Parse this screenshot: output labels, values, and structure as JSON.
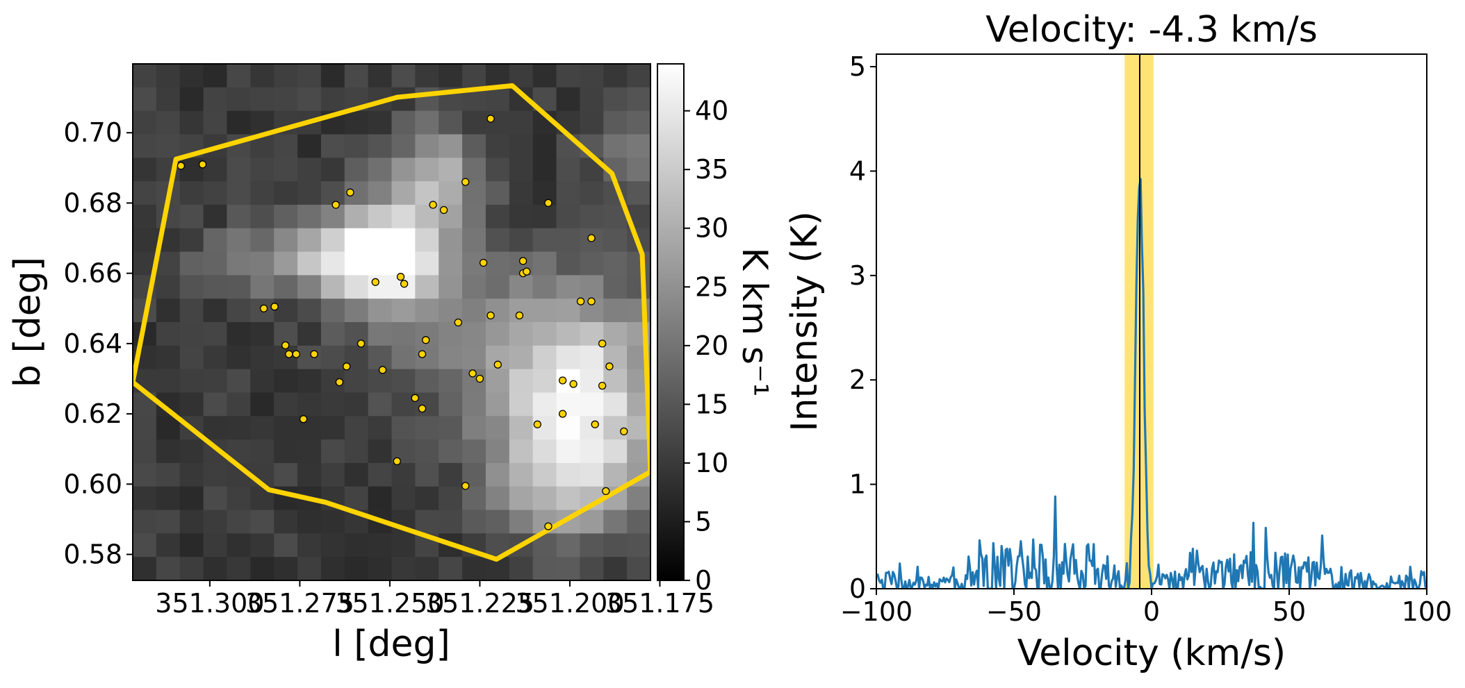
{
  "chart_data": [
    {
      "type": "heatmap",
      "xlabel": "l [deg]",
      "ylabel": "b [deg]",
      "xlim": [
        351.3214,
        351.1776
      ],
      "ylim": [
        0.5726,
        0.7196
      ],
      "xticks": [
        351.3,
        351.275,
        351.25,
        351.225,
        351.2,
        351.175
      ],
      "xtick_labels": [
        "351.300",
        "351.275",
        "351.250",
        "351.225",
        "351.200",
        "351.175"
      ],
      "yticks": [
        0.58,
        0.6,
        0.62,
        0.64,
        0.66,
        0.68,
        0.7
      ],
      "ytick_labels": [
        "0.58",
        "0.60",
        "0.62",
        "0.64",
        "0.66",
        "0.68",
        "0.70"
      ],
      "colormap": "gray",
      "colorbar": {
        "label": "K km s⁻¹",
        "range": [
          0,
          44
        ],
        "ticks": [
          0,
          5,
          10,
          15,
          20,
          25,
          30,
          35,
          40
        ],
        "tick_labels": [
          "0",
          "5",
          "10",
          "15",
          "20",
          "25",
          "30",
          "35",
          "40"
        ]
      },
      "grid_rows": 22,
      "grid_cols": 22,
      "blobs": [
        {
          "l": 351.251,
          "b": 0.666,
          "peak": 32,
          "sigma_l": 0.011,
          "sigma_b": 0.011
        },
        {
          "l": 351.27,
          "b": 0.664,
          "peak": 18,
          "sigma_l": 0.02,
          "sigma_b": 0.007
        },
        {
          "l": 351.238,
          "b": 0.688,
          "peak": 20,
          "sigma_l": 0.009,
          "sigma_b": 0.01
        },
        {
          "l": 351.198,
          "b": 0.627,
          "peak": 30,
          "sigma_l": 0.018,
          "sigma_b": 0.02
        },
        {
          "l": 351.2,
          "b": 0.6,
          "peak": 16,
          "sigma_l": 0.014,
          "sigma_b": 0.012
        },
        {
          "l": 351.235,
          "b": 0.645,
          "peak": 8,
          "sigma_l": 0.02,
          "sigma_b": 0.015
        },
        {
          "l": 351.183,
          "b": 0.695,
          "peak": 10,
          "sigma_l": 0.008,
          "sigma_b": 0.012
        }
      ],
      "base_level": 10,
      "polygon_l": [
        351.3214,
        351.3094,
        351.248,
        351.216,
        351.1883,
        351.1799,
        351.1776,
        351.2204,
        351.2678,
        351.2836,
        351.3214
      ],
      "polygon_b": [
        0.629,
        0.6925,
        0.7101,
        0.7134,
        0.6884,
        0.6654,
        0.6035,
        0.5786,
        0.5948,
        0.5984,
        0.629
      ],
      "polygon_color": "#ffd400",
      "points_l": [
        351.308,
        351.302,
        351.282,
        351.279,
        351.285,
        351.276,
        351.274,
        351.271,
        351.278,
        351.264,
        351.265,
        351.261,
        351.262,
        351.258,
        351.254,
        351.252,
        351.248,
        351.246,
        351.247,
        351.243,
        351.241,
        351.24,
        351.241,
        351.238,
        351.235,
        351.229,
        351.231,
        351.227,
        351.225,
        351.22,
        351.222,
        351.213,
        351.213,
        351.222,
        351.206,
        351.197,
        351.194,
        351.194,
        351.191,
        351.199,
        351.202,
        351.189,
        351.191,
        351.185,
        351.193,
        351.19,
        351.206,
        351.202,
        351.209,
        351.229,
        351.224,
        351.212,
        351.214
      ],
      "points_b": [
        0.6906,
        0.691,
        0.6505,
        0.6395,
        0.65,
        0.637,
        0.6185,
        0.637,
        0.637,
        0.629,
        0.6795,
        0.683,
        0.6335,
        0.64,
        0.6575,
        0.6325,
        0.6065,
        0.657,
        0.659,
        0.6245,
        0.637,
        0.641,
        0.6215,
        0.6795,
        0.678,
        0.686,
        0.646,
        0.6315,
        0.63,
        0.634,
        0.704,
        0.6635,
        0.66,
        0.648,
        0.68,
        0.652,
        0.652,
        0.67,
        0.64,
        0.6285,
        0.62,
        0.6335,
        0.628,
        0.615,
        0.617,
        0.598,
        0.588,
        0.6295,
        0.617,
        0.5995,
        0.663,
        0.6605,
        0.648
      ],
      "point_color": "#ffd400"
    },
    {
      "type": "line",
      "title": "Velocity: -4.3 km/s",
      "xlabel": "Velocity (km/s)",
      "ylabel": "Intensity (K)",
      "xlim": [
        -100,
        100
      ],
      "ylim": [
        0,
        5.12
      ],
      "xticks": [
        -100,
        -50,
        0,
        50,
        100
      ],
      "xtick_labels": [
        "−100",
        "−50",
        "0",
        "50",
        "100"
      ],
      "yticks": [
        0,
        1,
        2,
        3,
        4,
        5
      ],
      "ytick_labels": [
        "0",
        "1",
        "2",
        "3",
        "4",
        "5"
      ],
      "marked_velocity": -4.3,
      "highlight_range": [
        -9.8,
        0.7
      ],
      "highlight_color": "#ffe36e",
      "line_color": "#1f77b4",
      "series": [
        {
          "x_start": -100,
          "x_step": 0.5,
          "line_peak": {
            "center": -4.3,
            "amplitude": 3.9,
            "sigma": 1.4
          },
          "noise_knots_x": [
            -100,
            -90,
            -80,
            -70,
            -62,
            -55,
            -45,
            -38,
            -30,
            -20,
            -12,
            -6,
            0,
            6,
            15,
            25,
            35,
            45,
            55,
            65,
            75,
            85,
            92,
            100
          ],
          "noise_knots_y": [
            0.08,
            0.07,
            0.05,
            0.06,
            0.14,
            0.2,
            0.22,
            0.26,
            0.22,
            0.18,
            0.12,
            0.1,
            0.06,
            0.08,
            0.1,
            0.14,
            0.16,
            0.16,
            0.15,
            0.12,
            0.08,
            0.06,
            0.07,
            0.08
          ]
        }
      ]
    }
  ]
}
